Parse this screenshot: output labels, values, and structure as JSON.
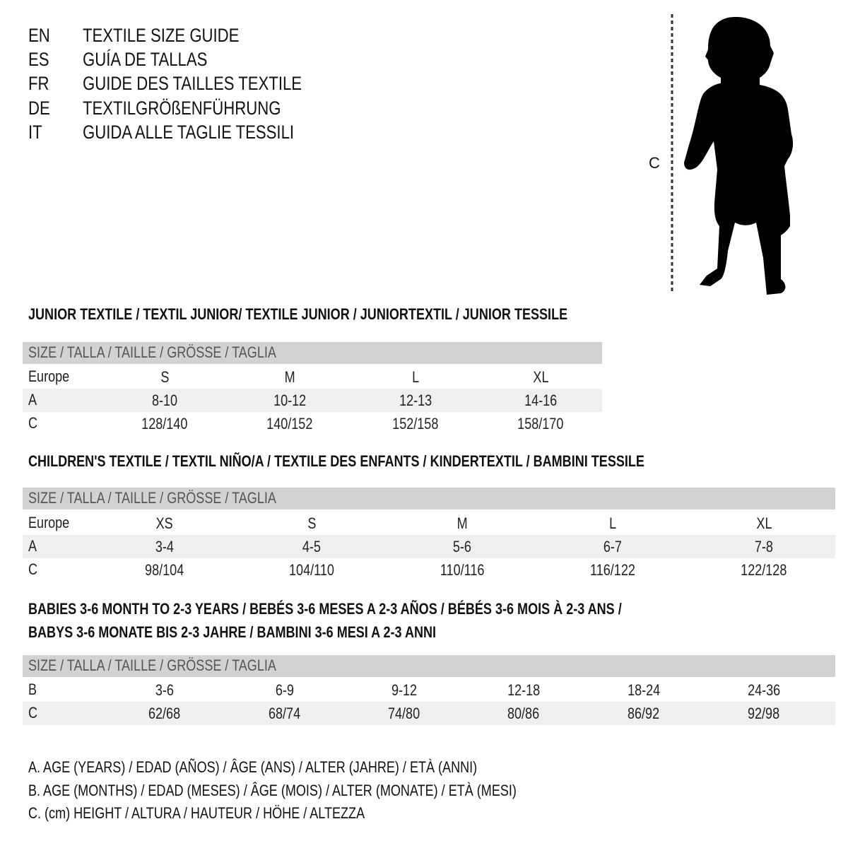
{
  "languages": [
    {
      "code": "EN",
      "text": "TEXTILE SIZE GUIDE"
    },
    {
      "code": "ES",
      "text": "GUÍA DE TALLAS"
    },
    {
      "code": "FR",
      "text": "GUIDE DES TAILLES TEXTILE"
    },
    {
      "code": "DE",
      "text": "TEXTILGRÖßENFÜHRUNG"
    },
    {
      "code": "IT",
      "text": "GUIDA ALLE TAGLIE TESSILI"
    }
  ],
  "figure": {
    "measure_label": "C",
    "icon": "child-silhouette-icon"
  },
  "colors": {
    "header_bg": "#d2d2d2",
    "shade_bg": "#efefef"
  },
  "sections": [
    {
      "title": [
        "JUNIOR TEXTILE / TEXTIL JUNIOR/ TEXTILE JUNIOR / JUNIORTEXTIL / JUNIOR TESSILE"
      ],
      "header": "SIZE / TALLA / TAILLE / GRÖSSE / TAGLIA",
      "rows": [
        {
          "label": "Europe",
          "values": [
            "S",
            "M",
            "L",
            "XL"
          ]
        },
        {
          "label": "A",
          "values": [
            "8-10",
            "10-12",
            "12-13",
            "14-16"
          ]
        },
        {
          "label": "C",
          "values": [
            "128/140",
            "140/152",
            "152/158",
            "158/170"
          ]
        }
      ]
    },
    {
      "title": [
        "CHILDREN'S TEXTILE / TEXTIL NIÑO/A / TEXTILE DES ENFANTS / KINDERTEXTIL / BAMBINI TESSILE"
      ],
      "header": "SIZE / TALLA / TAILLE / GRÖSSE / TAGLIA",
      "rows": [
        {
          "label": "Europe",
          "values": [
            "XS",
            "S",
            "M",
            "L",
            "XL"
          ]
        },
        {
          "label": "A",
          "values": [
            "3-4",
            "4-5",
            "5-6",
            "6-7",
            "7-8"
          ]
        },
        {
          "label": "C",
          "values": [
            "98/104",
            "104/110",
            "110/116",
            "116/122",
            "122/128"
          ]
        }
      ]
    },
    {
      "title": [
        "BABIES 3-6 MONTH TO 2-3 YEARS / BEBÉS 3-6 MESES A 2-3 AÑOS / BÉBÉS 3-6 MOIS À 2-3 ANS /",
        "BABYS 3-6 MONATE BIS 2-3 JAHRE / BAMBINI 3-6 MESI A 2-3 ANNI"
      ],
      "header": "SIZE / TALLA / TAILLE / GRÖSSE / TAGLIA",
      "rows": [
        {
          "label": "B",
          "values": [
            "3-6",
            "6-9",
            "9-12",
            "12-18",
            "18-24",
            "24-36"
          ]
        },
        {
          "label": "C",
          "values": [
            "62/68",
            "68/74",
            "74/80",
            "80/86",
            "86/92",
            "92/98"
          ]
        }
      ]
    }
  ],
  "legend": [
    "A. AGE (YEARS) / EDAD (AÑOS) / ÂGE (ANS) / ALTER (JAHRE) / ETÀ (ANNI)",
    "B. AGE (MONTHS) / EDAD (MESES) / ÂGE (MOIS) / ALTER (MONATE) / ETÀ (MESI)",
    "C. (cm) HEIGHT / ALTURA / HAUTEUR / HÖHE / ALTEZZA"
  ]
}
